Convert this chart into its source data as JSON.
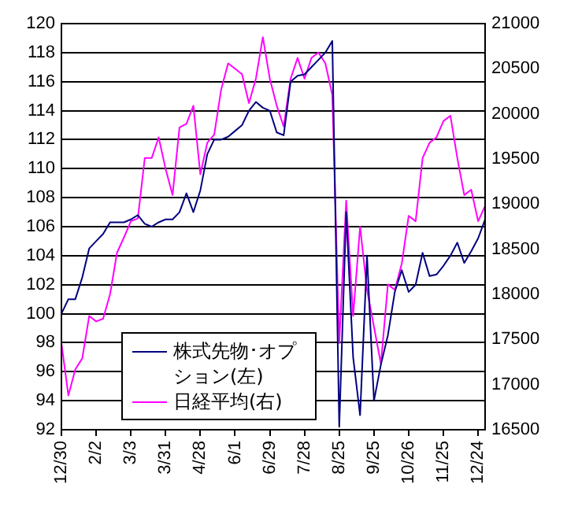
{
  "chart_data": {
    "type": "line",
    "categories": [
      "12/30",
      null,
      null,
      null,
      null,
      "2/2",
      null,
      null,
      null,
      null,
      "3/3",
      null,
      null,
      null,
      null,
      "3/31",
      null,
      null,
      null,
      null,
      "4/28",
      null,
      null,
      null,
      null,
      "6/1",
      null,
      null,
      null,
      null,
      "6/29",
      null,
      null,
      null,
      null,
      "7/28",
      null,
      null,
      null,
      null,
      "8/25",
      null,
      null,
      null,
      null,
      "9/25",
      null,
      null,
      null,
      null,
      "10/26",
      null,
      null,
      null,
      null,
      "11/25",
      null,
      null,
      null,
      null,
      "12/24",
      null
    ],
    "series": [
      {
        "name": "株式先物･オプション(左)",
        "color": "#000080",
        "values": [
          100,
          101,
          101,
          102.5,
          104.5,
          105,
          105.5,
          106.3,
          106.3,
          106.3,
          106.5,
          106.8,
          106.2,
          106,
          106.3,
          106.5,
          106.5,
          107,
          108.3,
          107,
          108.5,
          111,
          112,
          112,
          112.2,
          112.6,
          113,
          114,
          114.6,
          114.2,
          114,
          112.5,
          112.3,
          116,
          116.4,
          116.5,
          117,
          117.5,
          118,
          118.8,
          92.2,
          107,
          97,
          93,
          104,
          94,
          96.5,
          98.5,
          101.5,
          103,
          101.5,
          102,
          104.2,
          102.6,
          102.7,
          103.3,
          104,
          104.9,
          103.5,
          104.3,
          105.2,
          106.5
        ]
      },
      {
        "name": "日経平均(右)",
        "color": "#ff00ff",
        "axis": "y2",
        "values": [
          17460,
          16880,
          17170,
          17290,
          17760,
          17700,
          17730,
          18000,
          18460,
          18630,
          18810,
          18840,
          19510,
          19510,
          19740,
          19390,
          19100,
          19850,
          19890,
          20090,
          19330,
          19680,
          19770,
          20270,
          20560,
          20500,
          20440,
          20120,
          20390,
          20850,
          20390,
          20090,
          19860,
          20390,
          20620,
          20390,
          20620,
          20680,
          20560,
          20210,
          17460,
          19040,
          17760,
          18750,
          18050,
          17640,
          17230,
          18110,
          18050,
          18340,
          18870,
          18810,
          19510,
          19680,
          19740,
          19920,
          19980,
          19510,
          19100,
          19160,
          18810,
          18980
        ]
      }
    ],
    "ylim": [
      92,
      120
    ],
    "yticks": [
      92,
      94,
      96,
      98,
      100,
      102,
      104,
      106,
      108,
      110,
      112,
      114,
      116,
      118,
      120
    ],
    "y2lim": [
      16500,
      21000
    ],
    "y2ticks": [
      16500,
      17000,
      17500,
      18000,
      18500,
      19000,
      19500,
      20000,
      20500,
      21000
    ],
    "grid": "y",
    "legend": "bottom left",
    "marker": "none",
    "line_style": "solid"
  }
}
